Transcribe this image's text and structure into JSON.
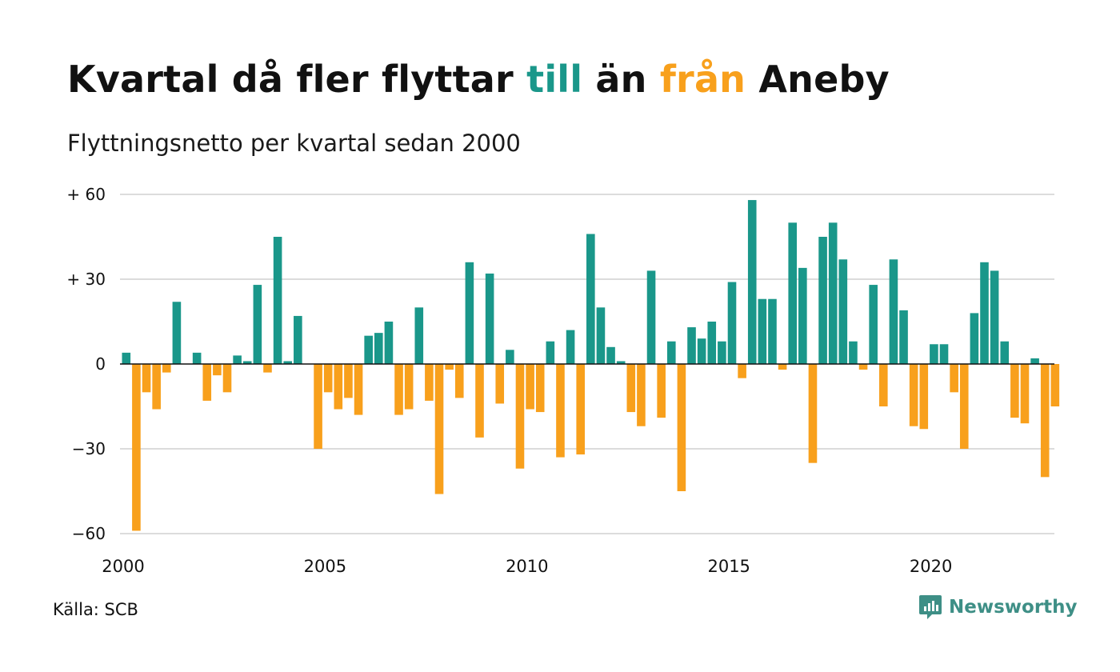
{
  "title": {
    "part1": "Kvartal då fler flyttar ",
    "till": "till",
    "part2": " än ",
    "fran": "från",
    "part3": " Aneby"
  },
  "subtitle": "Flyttningsnetto per kvartal sedan 2000",
  "source": "Källa: SCB",
  "brand": {
    "name": "Newsworthy",
    "icon": "newsworthy-logo-icon"
  },
  "colors": {
    "positive": "#1a978a",
    "negative": "#f8a01c",
    "grid": "#dcdcdc",
    "brand": "#3e8f86"
  },
  "chart_data": {
    "type": "bar",
    "title": "Kvartal då fler flyttar till än från Aneby",
    "subtitle": "Flyttningsnetto per kvartal sedan 2000",
    "xlabel": "",
    "ylabel": "",
    "ylim": [
      -60,
      60
    ],
    "yticks": [
      {
        "value": 60,
        "label": "+ 60"
      },
      {
        "value": 30,
        "label": "+ 30"
      },
      {
        "value": 0,
        "label": "0"
      },
      {
        "value": -30,
        "label": "−30"
      },
      {
        "value": -60,
        "label": "−60"
      }
    ],
    "xticks": [
      {
        "value": 2000,
        "label": "2000"
      },
      {
        "value": 2005,
        "label": "2005"
      },
      {
        "value": 2010,
        "label": "2010"
      },
      {
        "value": 2015,
        "label": "2015"
      },
      {
        "value": 2020,
        "label": "2020"
      }
    ],
    "start_year": 2000,
    "start_quarter": 1,
    "grid": true,
    "legend": "none",
    "values": [
      4,
      -59,
      -10,
      -16,
      -3,
      22,
      0,
      4,
      -13,
      -4,
      -10,
      3,
      1,
      28,
      -3,
      45,
      1,
      17,
      0,
      -30,
      -10,
      -16,
      -12,
      -18,
      10,
      11,
      15,
      -18,
      -16,
      20,
      -13,
      -46,
      -2,
      -12,
      36,
      -26,
      32,
      -14,
      5,
      -37,
      -16,
      -17,
      8,
      -33,
      12,
      -32,
      46,
      20,
      6,
      1,
      -17,
      -22,
      33,
      -19,
      8,
      -45,
      13,
      9,
      15,
      8,
      29,
      -5,
      58,
      23,
      23,
      -2,
      50,
      34,
      -35,
      45,
      50,
      37,
      8,
      -2,
      28,
      -15,
      37,
      19,
      -22,
      -23,
      7,
      7,
      -10,
      -30,
      18,
      36,
      33,
      8,
      -19,
      -21,
      2,
      -40,
      -15
    ]
  }
}
